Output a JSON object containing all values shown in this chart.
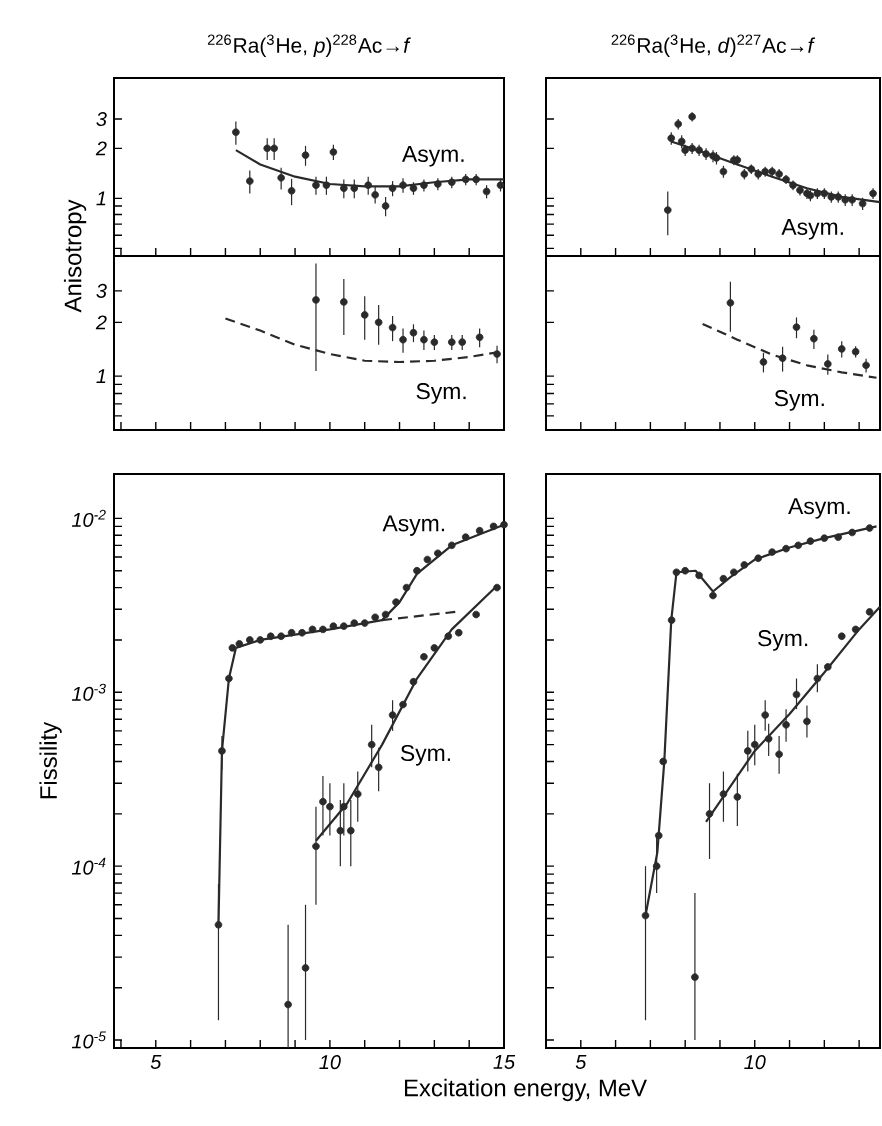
{
  "chart_data": [
    {
      "type": "scatter",
      "title": "$^{226}$Ra($^{3}$He, *p*)$^{228}$Ac→*f*",
      "ylabel": "Anisotropy",
      "log": "y",
      "tick_labels": "y",
      "xlim": [
        3.8,
        15
      ],
      "ylim": [
        0.45,
        5.3
      ],
      "xticks": [
        {
          "value": 4,
          "label": null
        },
        {
          "value": 5,
          "label": null
        },
        {
          "value": 6,
          "label": null
        },
        {
          "value": 7,
          "label": null
        },
        {
          "value": 8,
          "label": null
        },
        {
          "value": 9,
          "label": null
        },
        {
          "value": 10,
          "label": null
        },
        {
          "value": 11,
          "label": null
        },
        {
          "value": 12,
          "label": null
        },
        {
          "value": 13,
          "label": null
        },
        {
          "value": 14,
          "label": null
        },
        {
          "value": 15,
          "label": null
        }
      ],
      "yticks": [
        {
          "value": 0.5,
          "label": null
        },
        {
          "value": 0.6,
          "label": null
        },
        {
          "value": 0.7,
          "label": null
        },
        {
          "value": 0.8,
          "label": null
        },
        {
          "value": 0.9,
          "label": null
        },
        1,
        2,
        3
      ],
      "annotations": [
        "Asym."
      ],
      "series": [
        {
          "type": "scatter",
          "marker": "circle",
          "color": "#2a2a2a",
          "x": [
            7.3,
            7.7,
            8.2,
            8.4,
            8.6,
            8.9,
            9.3,
            9.6,
            9.9,
            10.1,
            10.4,
            10.7,
            11.1,
            11.3,
            11.6,
            11.8,
            12.1,
            12.4,
            12.7,
            13.1,
            13.5,
            13.9,
            14.2,
            14.5,
            14.9
          ],
          "values": [
            2.5,
            1.27,
            2.0,
            2.0,
            1.33,
            1.11,
            1.82,
            1.2,
            1.2,
            1.9,
            1.15,
            1.15,
            1.2,
            1.05,
            0.9,
            1.15,
            1.2,
            1.15,
            1.2,
            1.22,
            1.25,
            1.3,
            1.3,
            1.1,
            1.2
          ],
          "errors": [
            0.4,
            0.2,
            0.3,
            0.3,
            0.2,
            0.2,
            0.25,
            0.15,
            0.15,
            0.2,
            0.15,
            0.15,
            0.15,
            0.12,
            0.12,
            0.12,
            0.12,
            0.1,
            0.1,
            0.1,
            0.1,
            0.1,
            0.1,
            0.1,
            0.1
          ]
        },
        {
          "type": "line",
          "marker": "none",
          "line_style": "solid",
          "color": "#2a2a2a",
          "x": [
            7.3,
            8,
            9,
            10,
            11,
            12,
            13,
            14,
            15
          ],
          "values": [
            1.95,
            1.6,
            1.35,
            1.22,
            1.18,
            1.18,
            1.25,
            1.3,
            1.3
          ]
        }
      ]
    },
    {
      "type": "scatter",
      "title": "$^{226}$Ra($^{3}$He, *d*)$^{227}$Ac→*f*",
      "log": "y",
      "tick_labels": false,
      "xlim": [
        4.0,
        13.6
      ],
      "ylim": [
        0.45,
        5.3
      ],
      "xticks": [
        {
          "value": 5,
          "label": null
        },
        {
          "value": 6,
          "label": null
        },
        {
          "value": 7,
          "label": null
        },
        {
          "value": 8,
          "label": null
        },
        {
          "value": 9,
          "label": null
        },
        {
          "value": 10,
          "label": null
        },
        {
          "value": 11,
          "label": null
        },
        {
          "value": 12,
          "label": null
        },
        {
          "value": 13,
          "label": null
        }
      ],
      "yticks": [
        {
          "value": 0.5,
          "label": null
        },
        {
          "value": 0.6,
          "label": null
        },
        {
          "value": 0.7,
          "label": null
        },
        {
          "value": 0.8,
          "label": null
        },
        {
          "value": 0.9,
          "label": null
        },
        {
          "value": 1,
          "label": null
        },
        {
          "value": 2,
          "label": null
        },
        {
          "value": 3,
          "label": null
        }
      ],
      "annotations": [
        "Asym."
      ],
      "series": [
        {
          "type": "scatter",
          "marker": "circle",
          "color": "#2a2a2a",
          "x": [
            7.5,
            7.6,
            7.8,
            7.9,
            8.0,
            8.2,
            8.2,
            8.4,
            8.6,
            8.8,
            8.9,
            9.1,
            9.4,
            9.5,
            9.7,
            9.9,
            10.1,
            10.3,
            10.5,
            10.7,
            10.9,
            11.1,
            11.3,
            11.5,
            11.6,
            11.8,
            12.0,
            12.2,
            12.4,
            12.6,
            12.8,
            13.1,
            13.4
          ],
          "values": [
            0.85,
            2.3,
            2.8,
            2.2,
            1.95,
            3.1,
            2.0,
            1.95,
            1.85,
            1.8,
            1.75,
            1.45,
            1.7,
            1.7,
            1.4,
            1.5,
            1.4,
            1.45,
            1.45,
            1.4,
            1.3,
            1.2,
            1.12,
            1.07,
            1.04,
            1.07,
            1.07,
            1.02,
            1.02,
            0.98,
            0.98,
            0.93,
            1.07
          ],
          "errors": [
            0.25,
            0.2,
            0.2,
            0.2,
            0.15,
            0.2,
            0.15,
            0.15,
            0.15,
            0.15,
            0.15,
            0.12,
            0.12,
            0.12,
            0.1,
            0.1,
            0.1,
            0.1,
            0.1,
            0.1,
            0.08,
            0.08,
            0.08,
            0.08,
            0.08,
            0.08,
            0.08,
            0.08,
            0.08,
            0.08,
            0.08,
            0.08,
            0.08
          ]
        },
        {
          "type": "line",
          "marker": "none",
          "line_style": "solid",
          "color": "#2a2a2a",
          "x": [
            7.6,
            8.5,
            9.5,
            10.5,
            11.5,
            12.5,
            13.6
          ],
          "values": [
            2.2,
            1.9,
            1.6,
            1.35,
            1.15,
            1.02,
            0.95
          ]
        }
      ]
    },
    {
      "type": "scatter",
      "log": "y",
      "tick_labels": "y",
      "xlim": [
        3.8,
        15
      ],
      "ylim": [
        0.5,
        4.7
      ],
      "xticks": [
        {
          "value": 4,
          "label": null
        },
        {
          "value": 5,
          "label": null
        },
        {
          "value": 6,
          "label": null
        },
        {
          "value": 7,
          "label": null
        },
        {
          "value": 8,
          "label": null
        },
        {
          "value": 9,
          "label": null
        },
        {
          "value": 10,
          "label": null
        },
        {
          "value": 11,
          "label": null
        },
        {
          "value": 12,
          "label": null
        },
        {
          "value": 13,
          "label": null
        },
        {
          "value": 14,
          "label": null
        },
        {
          "value": 15,
          "label": null
        }
      ],
      "yticks": [
        {
          "value": 0.6,
          "label": null
        },
        {
          "value": 0.7,
          "label": null
        },
        {
          "value": 0.8,
          "label": null
        },
        {
          "value": 0.9,
          "label": null
        },
        1,
        2,
        3
      ],
      "annotations": [
        "Sym."
      ],
      "series": [
        {
          "type": "scatter",
          "marker": "circle",
          "color": "#2a2a2a",
          "x": [
            9.6,
            10.4,
            11.0,
            11.4,
            11.8,
            12.1,
            12.4,
            12.7,
            13.0,
            13.5,
            13.8,
            14.3,
            14.8
          ],
          "values": [
            2.67,
            2.6,
            2.2,
            2.0,
            1.87,
            1.6,
            1.75,
            1.6,
            1.55,
            1.55,
            1.55,
            1.65,
            1.33
          ],
          "errors": [
            1.6,
            0.9,
            0.6,
            0.5,
            0.3,
            0.25,
            0.2,
            0.2,
            0.15,
            0.15,
            0.15,
            0.2,
            0.15
          ]
        },
        {
          "type": "line",
          "marker": "none",
          "line_style": "dashed",
          "color": "#2a2a2a",
          "x": [
            7,
            8,
            9,
            10,
            11,
            12,
            13,
            14,
            15
          ],
          "values": [
            2.1,
            1.8,
            1.5,
            1.33,
            1.22,
            1.2,
            1.22,
            1.28,
            1.38
          ]
        }
      ]
    },
    {
      "type": "scatter",
      "log": "y",
      "tick_labels": false,
      "xlim": [
        4.0,
        13.6
      ],
      "ylim": [
        0.5,
        4.7
      ],
      "xticks": [
        {
          "value": 5,
          "label": null
        },
        {
          "value": 6,
          "label": null
        },
        {
          "value": 7,
          "label": null
        },
        {
          "value": 8,
          "label": null
        },
        {
          "value": 9,
          "label": null
        },
        {
          "value": 10,
          "label": null
        },
        {
          "value": 11,
          "label": null
        },
        {
          "value": 12,
          "label": null
        },
        {
          "value": 13,
          "label": null
        }
      ],
      "yticks": [
        {
          "value": 0.6,
          "label": null
        },
        {
          "value": 0.7,
          "label": null
        },
        {
          "value": 0.8,
          "label": null
        },
        {
          "value": 0.9,
          "label": null
        },
        {
          "value": 1,
          "label": null
        },
        {
          "value": 2,
          "label": null
        },
        {
          "value": 3,
          "label": null
        }
      ],
      "annotations": [
        "Sym."
      ],
      "series": [
        {
          "type": "scatter",
          "marker": "circle",
          "color": "#2a2a2a",
          "x": [
            9.3,
            10.25,
            10.8,
            11.2,
            11.7,
            12.1,
            12.5,
            12.9,
            13.2
          ],
          "values": [
            2.57,
            1.2,
            1.26,
            1.88,
            1.62,
            1.17,
            1.42,
            1.37,
            1.15
          ],
          "errors": [
            0.8,
            0.15,
            0.2,
            0.25,
            0.2,
            0.15,
            0.15,
            0.1,
            0.1
          ]
        },
        {
          "type": "line",
          "marker": "none",
          "line_style": "dashed",
          "color": "#2a2a2a",
          "x": [
            8.5,
            9.5,
            10.5,
            11.5,
            12.5,
            13.5
          ],
          "values": [
            1.96,
            1.6,
            1.32,
            1.15,
            1.05,
            0.98
          ]
        }
      ]
    },
    {
      "type": "scatter",
      "ylabel": "Fissility",
      "xlabel": "Excitation energy, MeV",
      "log": "y",
      "xlim": [
        3.8,
        15
      ],
      "ylim": [
        9e-06,
        0.018
      ],
      "xticks": [
        {
          "value": 4,
          "label": null
        },
        5,
        {
          "value": 6,
          "label": null
        },
        {
          "value": 7,
          "label": null
        },
        {
          "value": 8,
          "label": null
        },
        {
          "value": 9,
          "label": null
        },
        10,
        {
          "value": 11,
          "label": null
        },
        {
          "value": 12,
          "label": null
        },
        {
          "value": 13,
          "label": null
        },
        {
          "value": 14,
          "label": null
        },
        15
      ],
      "yticks": [
        {
          "value": 1e-05,
          "label": "10$^{-5}$"
        },
        {
          "value": 2e-05,
          "label": null
        },
        {
          "value": 3e-05,
          "label": null
        },
        {
          "value": 4e-05,
          "label": null
        },
        {
          "value": 5e-05,
          "label": null
        },
        {
          "value": 6e-05,
          "label": null
        },
        {
          "value": 7e-05,
          "label": null
        },
        {
          "value": 8e-05,
          "label": null
        },
        {
          "value": 9e-05,
          "label": null
        },
        {
          "value": 0.0001,
          "label": "10$^{-4}$"
        },
        {
          "value": 0.0002,
          "label": null
        },
        {
          "value": 0.0003,
          "label": null
        },
        {
          "value": 0.0004,
          "label": null
        },
        {
          "value": 0.0005,
          "label": null
        },
        {
          "value": 0.0006,
          "label": null
        },
        {
          "value": 0.0007,
          "label": null
        },
        {
          "value": 0.0008,
          "label": null
        },
        {
          "value": 0.0009,
          "label": null
        },
        {
          "value": 0.001,
          "label": "10$^{-3}$"
        },
        {
          "value": 0.002,
          "label": null
        },
        {
          "value": 0.003,
          "label": null
        },
        {
          "value": 0.004,
          "label": null
        },
        {
          "value": 0.005,
          "label": null
        },
        {
          "value": 0.006,
          "label": null
        },
        {
          "value": 0.007,
          "label": null
        },
        {
          "value": 0.008,
          "label": null
        },
        {
          "value": 0.009,
          "label": null
        },
        {
          "value": 0.01,
          "label": "10$^{-2}$"
        }
      ],
      "annotations": [
        "Asym.",
        "Sym."
      ],
      "series": [
        {
          "type": "scatter",
          "marker": "circle",
          "color": "#2a2a2a",
          "x": [
            6.8,
            6.9,
            7.1,
            7.2,
            7.4,
            7.7,
            8.0,
            8.3,
            8.6,
            8.9,
            9.2,
            9.5,
            9.8,
            10.1,
            10.4,
            10.7,
            11.0,
            11.3,
            11.6,
            11.9,
            12.2,
            12.5,
            12.8,
            13.1,
            13.5,
            13.9,
            14.3,
            14.7,
            15.0
          ],
          "values": [
            4.6e-05,
            0.00046,
            0.0012,
            0.0018,
            0.0019,
            0.002,
            0.002,
            0.0021,
            0.0021,
            0.0022,
            0.0022,
            0.0023,
            0.0023,
            0.0024,
            0.0024,
            0.0025,
            0.0025,
            0.0027,
            0.0028,
            0.0033,
            0.004,
            0.005,
            0.0058,
            0.0063,
            0.007,
            0.0078,
            0.0085,
            0.009,
            0.0092
          ],
          "errors": [
            [
              1.3e-05,
              7.9e-05
            ],
            [
              0.00036,
              0.00056
            ],
            null,
            null,
            null,
            null,
            null,
            null,
            null,
            null,
            null,
            null,
            null,
            null,
            null,
            null,
            null,
            null,
            null,
            null,
            null,
            null,
            null,
            null,
            null,
            null,
            null,
            null,
            null
          ]
        },
        {
          "type": "line",
          "marker": "none",
          "line_style": "solid",
          "color": "#2a2a2a",
          "x": [
            6.8,
            6.9,
            7.1,
            7.3,
            8,
            10,
            11.5,
            12,
            12.5,
            13.5,
            15
          ],
          "values": [
            4.6e-05,
            0.00046,
            0.0012,
            0.0018,
            0.002,
            0.0023,
            0.0026,
            0.0033,
            0.0048,
            0.007,
            0.0092
          ]
        },
        {
          "type": "line",
          "marker": "none",
          "line_style": "dashed",
          "color": "#2a2a2a",
          "x": [
            11.5,
            13.6
          ],
          "values": [
            0.0026,
            0.0029
          ]
        },
        {
          "type": "scatter",
          "marker": "circle",
          "color": "#2a2a2a",
          "x": [
            8.8,
            9.3,
            9.6,
            9.8,
            10.0,
            10.3,
            10.4,
            10.6,
            10.8,
            11.2,
            11.4,
            11.8,
            12.1,
            12.4,
            12.7,
            13.0,
            13.4,
            13.7,
            14.2,
            14.8
          ],
          "values": [
            1.6e-05,
            2.6e-05,
            0.00013,
            0.000235,
            0.00022,
            0.00016,
            0.00022,
            0.00016,
            0.00026,
            0.0005,
            0.00037,
            0.00074,
            0.00085,
            0.00115,
            0.0016,
            0.0018,
            0.0021,
            0.0022,
            0.0028,
            0.004
          ],
          "errors": [
            [
              9e-06,
              4.6e-05
            ],
            [
              1e-05,
              6e-05
            ],
            [
              6e-05,
              0.00022
            ],
            [
              0.00015,
              0.00033
            ],
            [
              0.00015,
              0.0003
            ],
            [
              0.0001,
              0.00024
            ],
            [
              0.00015,
              0.0003
            ],
            [
              0.0001,
              0.00024
            ],
            [
              0.00018,
              0.00035
            ],
            [
              0.00037,
              0.00065
            ],
            [
              0.00027,
              0.00048
            ],
            [
              0.0006,
              0.0009
            ],
            null,
            null,
            null,
            null,
            null,
            null,
            null,
            null
          ]
        },
        {
          "type": "line",
          "marker": "none",
          "line_style": "solid",
          "color": "#2a2a2a",
          "x": [
            9.6,
            10.5,
            11.5,
            12.5,
            13.5,
            14.8
          ],
          "values": [
            0.00014,
            0.00023,
            0.0005,
            0.0012,
            0.0023,
            0.0041
          ]
        }
      ]
    },
    {
      "type": "scatter",
      "log": "y",
      "tick_labels": "x",
      "xlim": [
        4.0,
        13.6
      ],
      "ylim": [
        9e-06,
        0.018
      ],
      "xticks": [
        5,
        {
          "value": 6,
          "label": null
        },
        {
          "value": 7,
          "label": null
        },
        {
          "value": 8,
          "label": null
        },
        {
          "value": 9,
          "label": null
        },
        10,
        {
          "value": 11,
          "label": null
        },
        {
          "value": 12,
          "label": null
        },
        {
          "value": 13,
          "label": null
        }
      ],
      "yticks": [
        {
          "value": 1e-05,
          "label": null
        },
        {
          "value": 2e-05,
          "label": null
        },
        {
          "value": 3e-05,
          "label": null
        },
        {
          "value": 4e-05,
          "label": null
        },
        {
          "value": 5e-05,
          "label": null
        },
        {
          "value": 6e-05,
          "label": null
        },
        {
          "value": 7e-05,
          "label": null
        },
        {
          "value": 8e-05,
          "label": null
        },
        {
          "value": 9e-05,
          "label": null
        },
        {
          "value": 0.0001,
          "label": null
        },
        {
          "value": 0.0002,
          "label": null
        },
        {
          "value": 0.0003,
          "label": null
        },
        {
          "value": 0.0004,
          "label": null
        },
        {
          "value": 0.0005,
          "label": null
        },
        {
          "value": 0.0006,
          "label": null
        },
        {
          "value": 0.0007,
          "label": null
        },
        {
          "value": 0.0008,
          "label": null
        },
        {
          "value": 0.0009,
          "label": null
        },
        {
          "value": 0.001,
          "label": null
        },
        {
          "value": 0.002,
          "label": null
        },
        {
          "value": 0.003,
          "label": null
        },
        {
          "value": 0.004,
          "label": null
        },
        {
          "value": 0.005,
          "label": null
        },
        {
          "value": 0.006,
          "label": null
        },
        {
          "value": 0.007,
          "label": null
        },
        {
          "value": 0.008,
          "label": null
        },
        {
          "value": 0.009,
          "label": null
        },
        {
          "value": 0.01,
          "label": null
        }
      ],
      "annotations": [
        "Asym.",
        "Sym."
      ],
      "series": [
        {
          "type": "scatter",
          "marker": "circle",
          "color": "#2a2a2a",
          "x": [
            6.86,
            7.18,
            7.24,
            7.37,
            7.61,
            7.75,
            8.0,
            8.4,
            8.8,
            9.1,
            9.4,
            9.7,
            10.1,
            10.5,
            10.9,
            11.25,
            11.6,
            12.0,
            12.4,
            12.8,
            13.3
          ],
          "values": [
            5.2e-05,
            0.0001,
            0.00015,
            0.0004,
            0.0026,
            0.0049,
            0.005,
            0.0047,
            0.0036,
            0.0045,
            0.0049,
            0.0054,
            0.0059,
            0.0064,
            0.0067,
            0.007,
            0.0074,
            0.0077,
            0.0078,
            0.0083,
            0.0088
          ],
          "errors": [
            [
              1.3e-05,
              0.0001
            ],
            [
              7e-05,
              0.00015
            ],
            null,
            null,
            null,
            null,
            null,
            null,
            null,
            null,
            null,
            null,
            null,
            null,
            null,
            null,
            null,
            null,
            null,
            null,
            null
          ]
        },
        {
          "type": "line",
          "marker": "none",
          "line_style": "solid",
          "color": "#2a2a2a",
          "x": [
            6.86,
            7.2,
            7.4,
            7.6,
            7.75,
            8.3,
            8.8,
            9.3,
            10,
            11,
            12,
            13.5
          ],
          "values": [
            5.2e-05,
            0.00012,
            0.0004,
            0.0026,
            0.0049,
            0.005,
            0.0038,
            0.0046,
            0.0058,
            0.0068,
            0.0077,
            0.009
          ]
        },
        {
          "type": "scatter",
          "marker": "circle",
          "color": "#2a2a2a",
          "x": [
            8.28,
            8.7,
            9.1,
            9.5,
            9.8,
            10.0,
            10.3,
            10.4,
            10.7,
            10.9,
            11.2,
            11.5,
            11.8,
            12.1,
            12.5,
            12.9,
            13.3
          ],
          "values": [
            2.3e-05,
            0.0002,
            0.00026,
            0.00025,
            0.00046,
            0.0005,
            0.00074,
            0.00054,
            0.00044,
            0.00065,
            0.00097,
            0.00068,
            0.0012,
            0.0014,
            0.0021,
            0.0023,
            0.0029
          ],
          "errors": [
            [
              1e-05,
              7e-05
            ],
            [
              0.00011,
              0.0003
            ],
            [
              0.00018,
              0.00035
            ],
            [
              0.00017,
              0.00034
            ],
            [
              0.00035,
              0.0006
            ],
            [
              0.00038,
              0.00065
            ],
            [
              0.0006,
              0.0009
            ],
            [
              0.00043,
              0.00066
            ],
            [
              0.00034,
              0.00056
            ],
            [
              0.00052,
              0.0008
            ],
            [
              0.0008,
              0.0012
            ],
            [
              0.00055,
              0.00084
            ],
            [
              0.001,
              0.00145
            ],
            null,
            null,
            null,
            null
          ]
        },
        {
          "type": "line",
          "marker": "none",
          "line_style": "solid",
          "color": "#2a2a2a",
          "x": [
            8.6,
            10,
            11,
            12,
            13,
            13.6
          ],
          "values": [
            0.00018,
            0.00046,
            0.00075,
            0.0013,
            0.0023,
            0.0031
          ]
        }
      ]
    }
  ]
}
